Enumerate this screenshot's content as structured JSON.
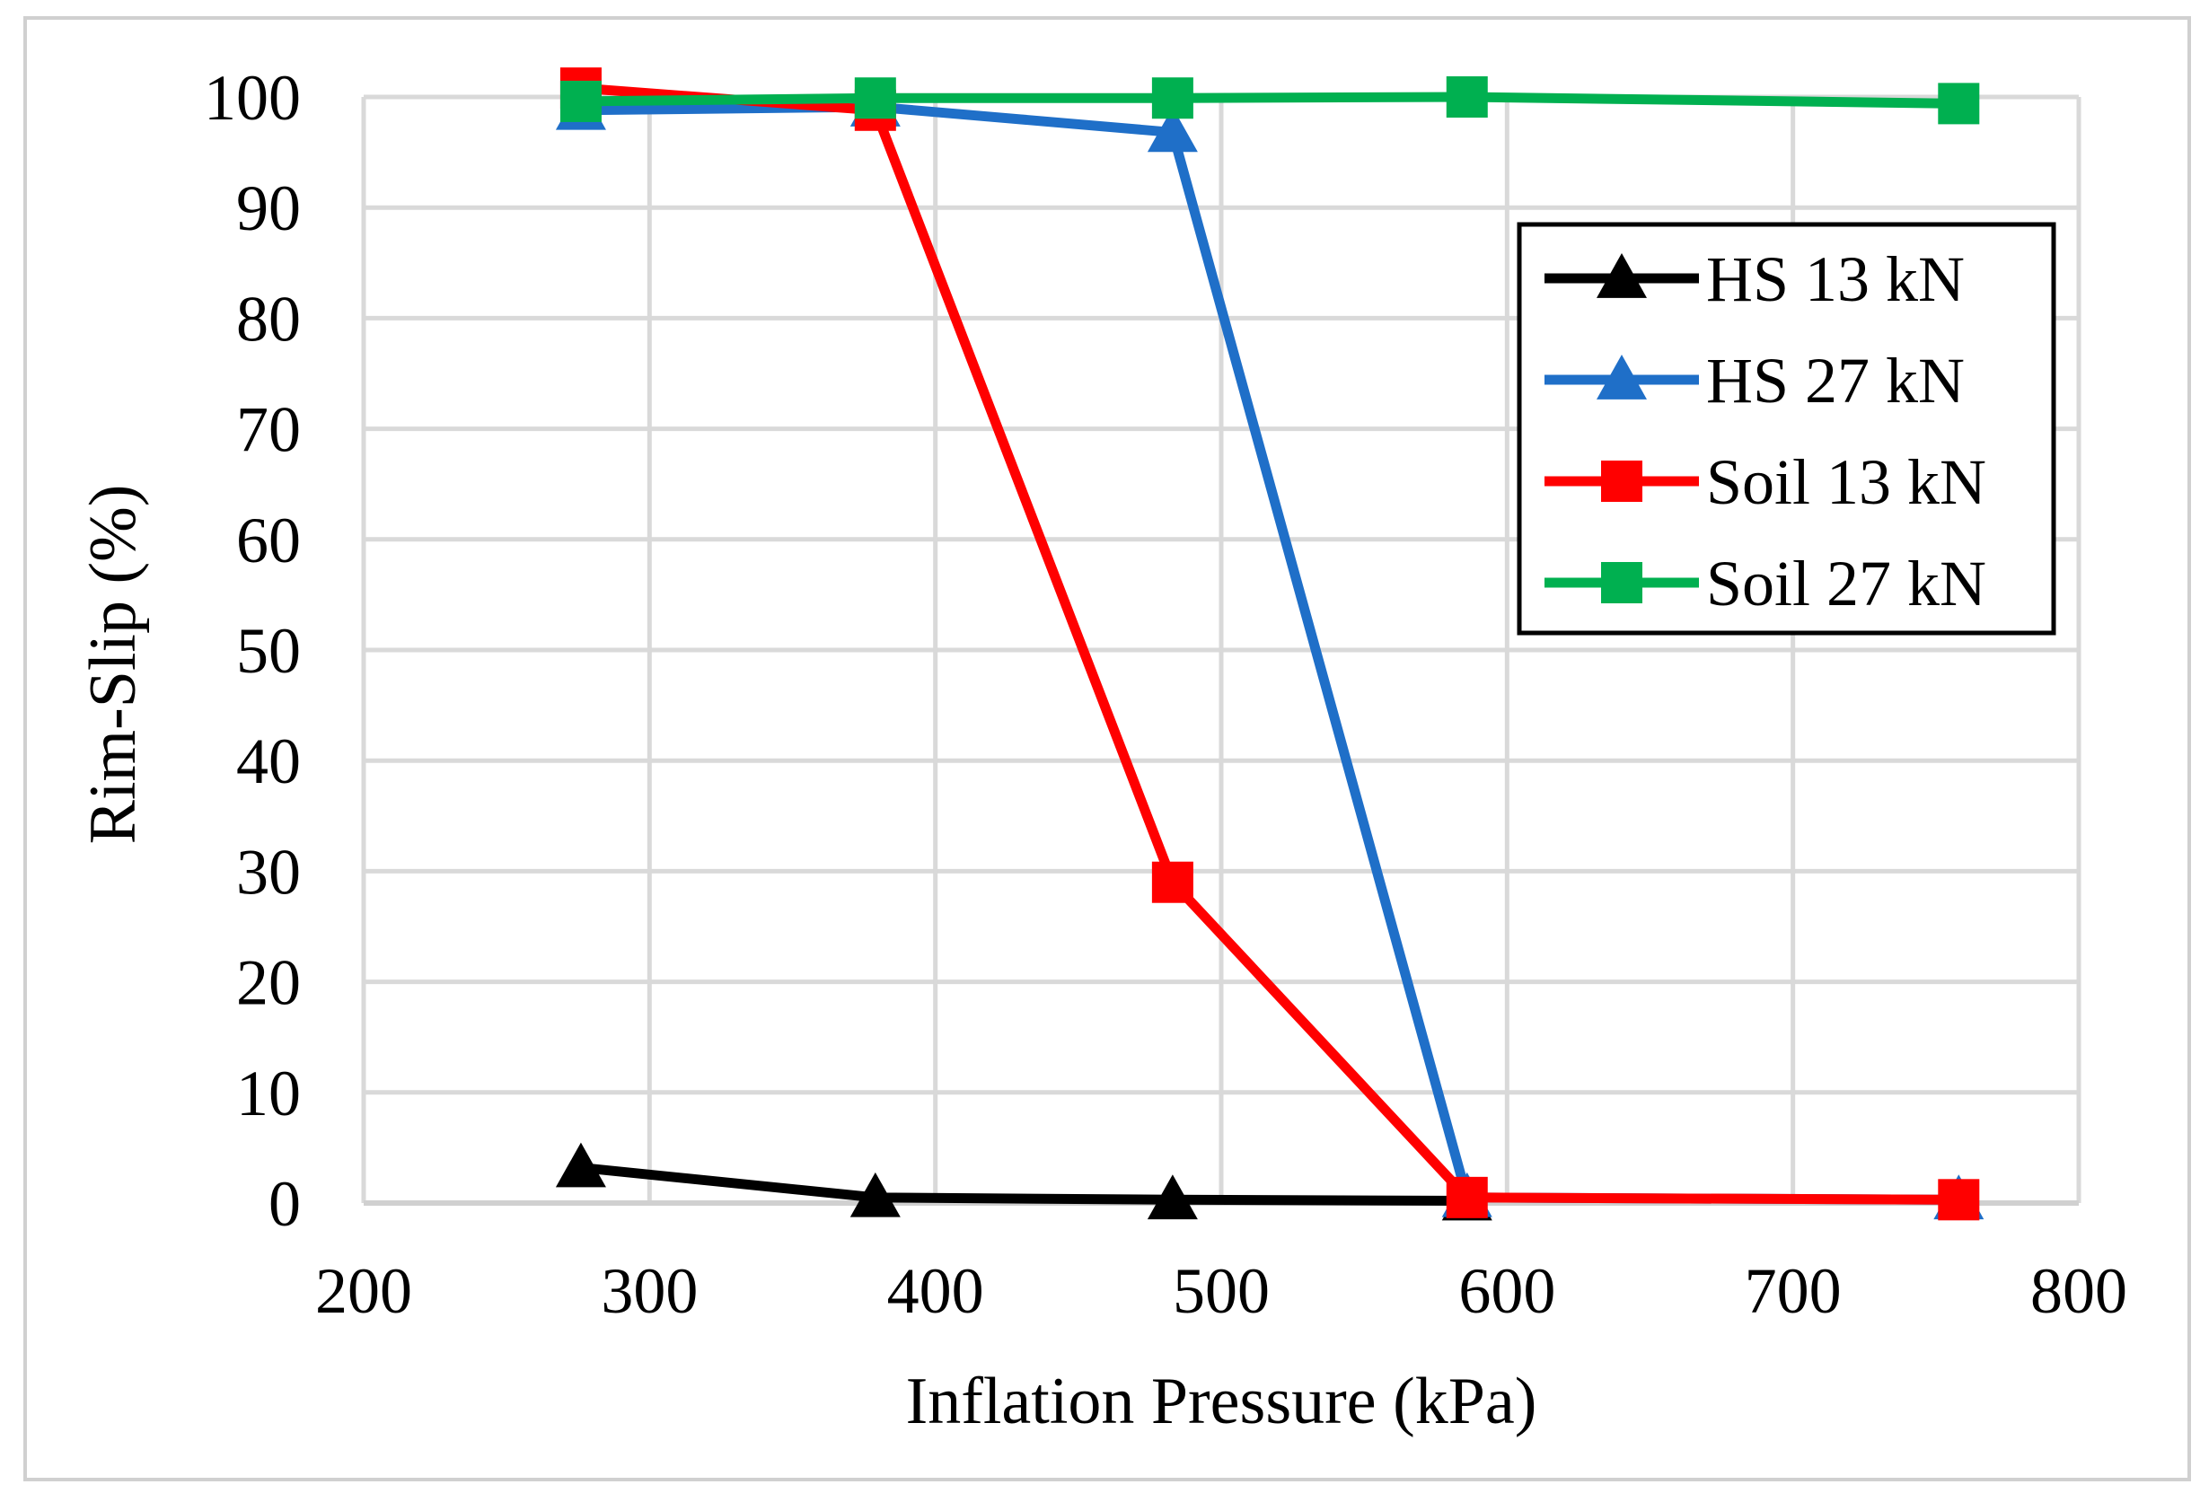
{
  "chart_data": {
    "type": "line",
    "title": "",
    "xlabel": "Inflation Pressure (kPa)",
    "ylabel": "Rim-Slip (%)",
    "xlim": [
      200,
      800
    ],
    "ylim": [
      0,
      100
    ],
    "x_ticks": [
      200,
      300,
      400,
      500,
      600,
      700,
      800
    ],
    "y_ticks": [
      0,
      10,
      20,
      30,
      40,
      50,
      60,
      70,
      80,
      90,
      100
    ],
    "grid": true,
    "legend_position": "top-right",
    "series": [
      {
        "name": "HS 13 kN",
        "color": "#000000",
        "marker": "triangle",
        "x": [
          276,
          379,
          483,
          586
        ],
        "y": [
          3.2,
          0.5,
          0.3,
          0.2
        ]
      },
      {
        "name": "HS 27 kN",
        "color": "#1f6fc8",
        "marker": "triangle",
        "x": [
          276,
          379,
          483,
          586,
          758
        ],
        "y": [
          98.8,
          99.1,
          96.8,
          0.5,
          0.3
        ]
      },
      {
        "name": "Soil 13 kN",
        "color": "#ff0000",
        "marker": "square",
        "x": [
          276,
          379,
          483,
          586,
          758
        ],
        "y": [
          100.8,
          98.8,
          29.0,
          0.5,
          0.3
        ]
      },
      {
        "name": "Soil 27 kN",
        "color": "#00b050",
        "marker": "square",
        "x": [
          276,
          379,
          483,
          586,
          758
        ],
        "y": [
          99.6,
          99.9,
          99.9,
          100.0,
          99.4
        ]
      }
    ]
  }
}
